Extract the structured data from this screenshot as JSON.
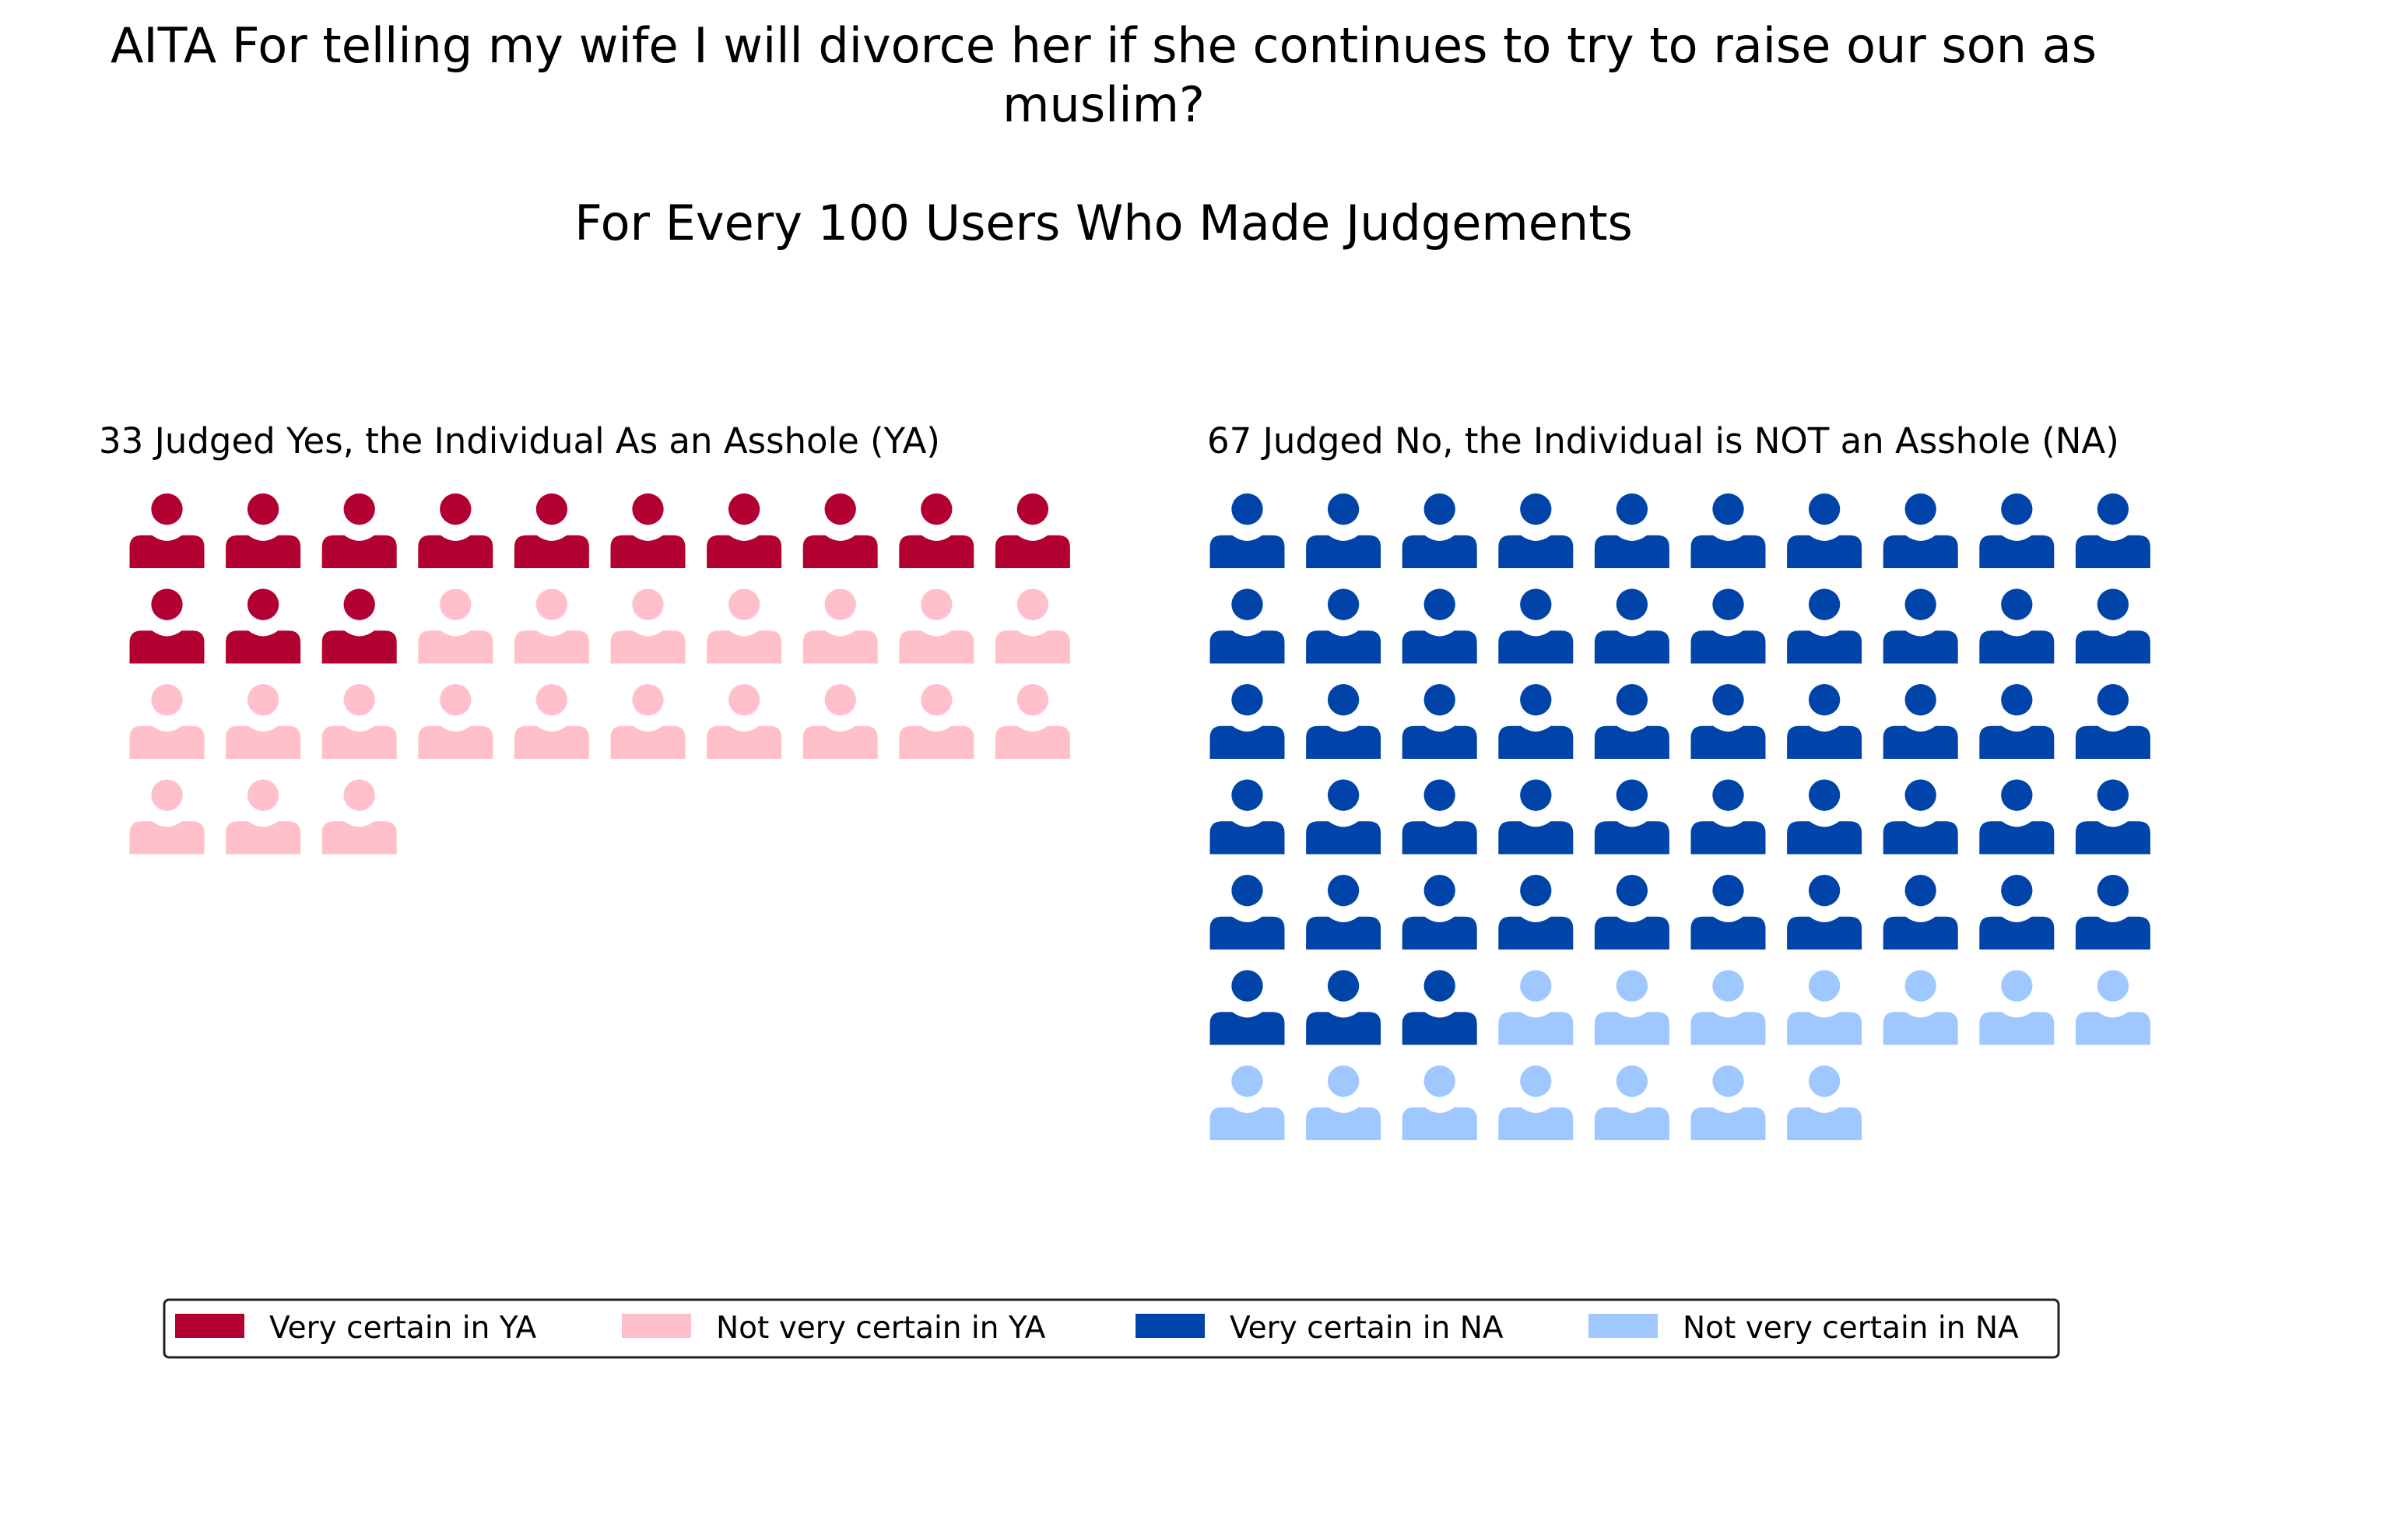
{
  "chart_data": {
    "type": "waffle",
    "title": "AITA For telling my wife I will divorce her if she continues to try to raise our son as muslim?",
    "subtitle": "For Every 100 Users Who Made Judgements",
    "icon": "person-icon",
    "total": 100,
    "columns": 10,
    "panels": [
      {
        "key": "ya",
        "title": "33 Judged Yes, the Individual As an Asshole (YA)",
        "count": 33,
        "segments": [
          {
            "name": "Very certain in YA",
            "value": 13,
            "color": "#b30033"
          },
          {
            "name": "Not very certain in YA",
            "value": 20,
            "color": "#ffc0cb"
          }
        ]
      },
      {
        "key": "na",
        "title": "67 Judged No, the Individual is NOT an Asshole (NA)",
        "count": 67,
        "segments": [
          {
            "name": "Very certain in NA",
            "value": 53,
            "color": "#0044aa"
          },
          {
            "name": "Not very certain in NA",
            "value": 14,
            "color": "#9ec8ff"
          }
        ]
      }
    ],
    "legend": {
      "placement": "bottom",
      "entries": [
        {
          "label": "Very certain in YA",
          "color": "#b30033"
        },
        {
          "label": "Not very certain in YA",
          "color": "#ffc0cb"
        },
        {
          "label": "Very certain in NA",
          "color": "#0044aa"
        },
        {
          "label": "Not very certain in NA",
          "color": "#9ec8ff"
        }
      ]
    }
  }
}
